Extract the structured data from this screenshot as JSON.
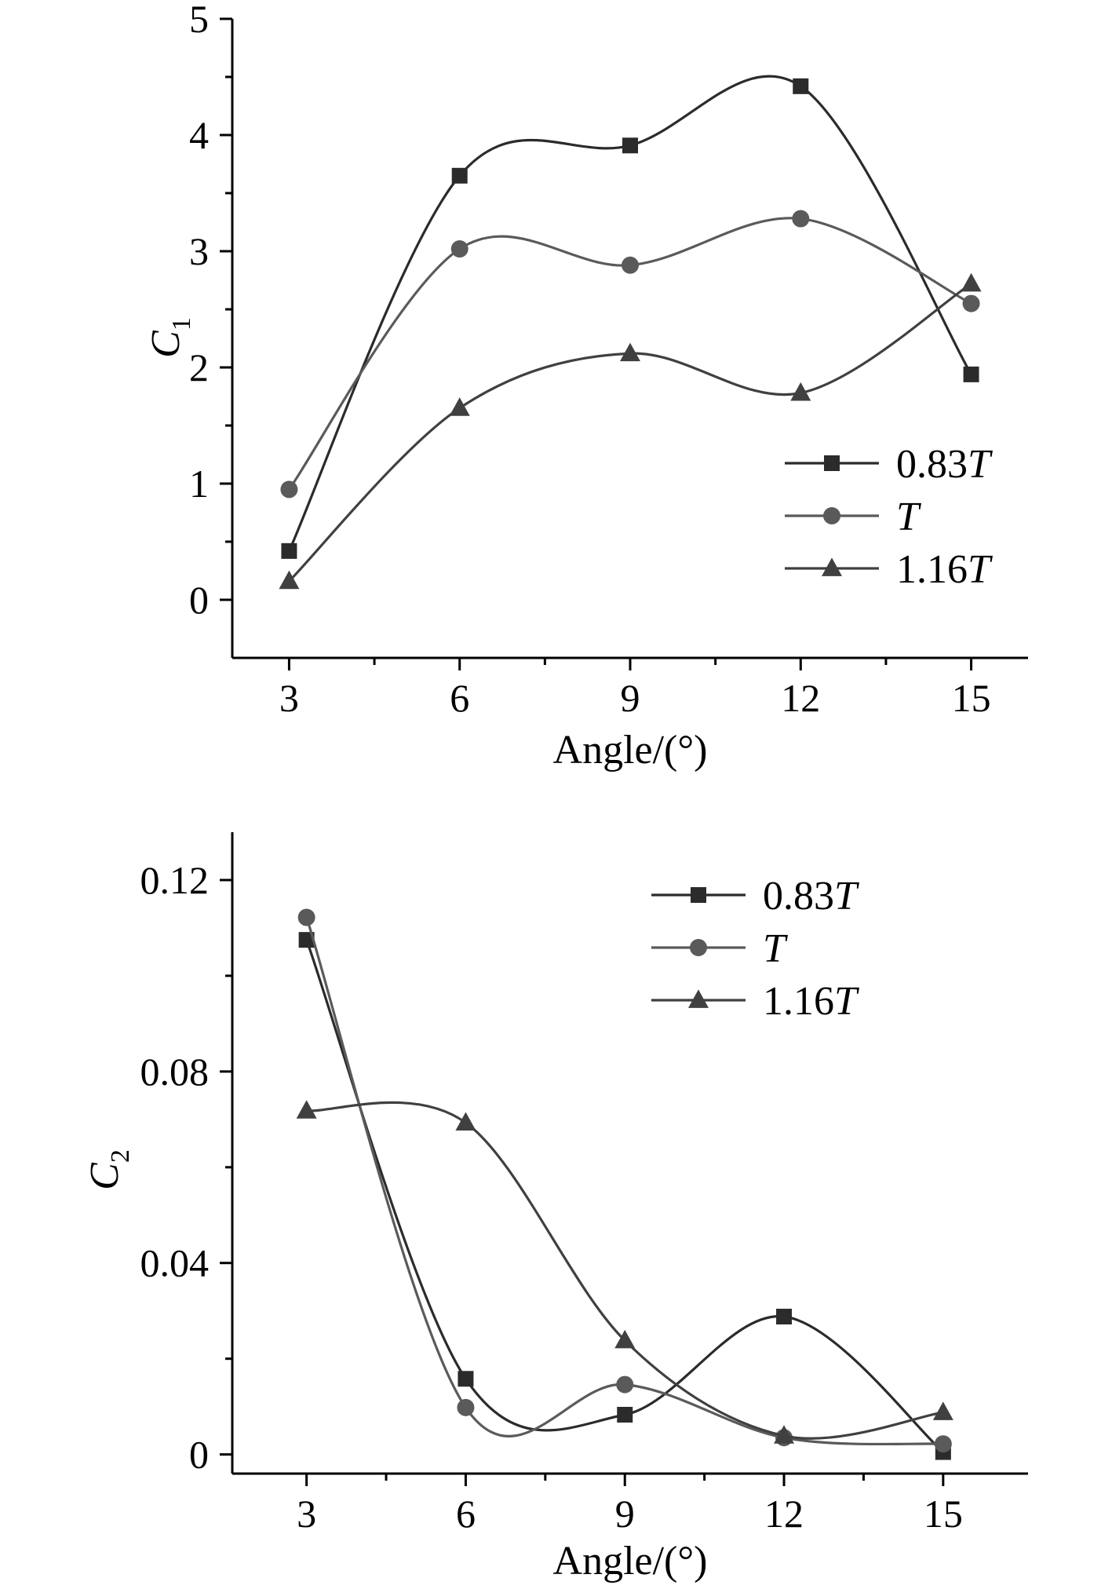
{
  "chart_data": [
    {
      "type": "line",
      "x": [
        3,
        6,
        9,
        12,
        15
      ],
      "xlabel": "Angle/(°)",
      "ylabel": {
        "main": "C",
        "sub": "1"
      },
      "xlim": [
        2,
        16
      ],
      "ylim": [
        -0.5,
        5
      ],
      "xticks": [
        3,
        6,
        9,
        12,
        15
      ],
      "xtick_labels": [
        "3",
        "6",
        "9",
        "12",
        "15"
      ],
      "yticks": [
        0,
        1,
        2,
        3,
        4,
        5
      ],
      "ytick_labels": [
        "0",
        "1",
        "2",
        "3",
        "4",
        "5"
      ],
      "grid": false,
      "legend_position": "lower-right",
      "series": [
        {
          "name": "0.83T",
          "name_parts": [
            "0.83",
            "T"
          ],
          "marker": "square",
          "color": "#2b2b2b",
          "values": [
            0.42,
            3.65,
            3.91,
            4.42,
            1.94
          ]
        },
        {
          "name": "T",
          "name_parts": [
            "",
            "T"
          ],
          "marker": "circle",
          "color": "#5a5a5a",
          "values": [
            0.95,
            3.02,
            2.88,
            3.28,
            2.55
          ]
        },
        {
          "name": "1.16T",
          "name_parts": [
            "1.16",
            "T"
          ],
          "marker": "triangle",
          "color": "#404040",
          "values": [
            0.16,
            1.65,
            2.12,
            1.78,
            2.72
          ]
        }
      ]
    },
    {
      "type": "line",
      "x": [
        3,
        6,
        9,
        12,
        15
      ],
      "xlabel": "Angle/(°)",
      "ylabel": {
        "main": "C",
        "sub": "2"
      },
      "xlim": [
        1.6,
        16.6
      ],
      "ylim": [
        -0.004,
        0.13
      ],
      "xticks": [
        3,
        6,
        9,
        12,
        15
      ],
      "xtick_labels": [
        "3",
        "6",
        "9",
        "12",
        "15"
      ],
      "yticks": [
        0,
        0.04,
        0.08,
        0.12
      ],
      "ytick_labels": [
        "0",
        "0.04",
        "0.08",
        "0.12"
      ],
      "grid": false,
      "legend_position": "top-right",
      "series": [
        {
          "name": "0.83T",
          "name_parts": [
            "0.83",
            "T"
          ],
          "marker": "square",
          "color": "#2b2b2b",
          "values": [
            0.1075,
            0.0158,
            0.0083,
            0.0288,
            0.0005
          ]
        },
        {
          "name": "T",
          "name_parts": [
            "",
            "T"
          ],
          "marker": "circle",
          "color": "#5a5a5a",
          "values": [
            0.1122,
            0.0098,
            0.0146,
            0.0035,
            0.0022
          ]
        },
        {
          "name": "1.16T",
          "name_parts": [
            "1.16",
            "T"
          ],
          "marker": "triangle",
          "color": "#404040",
          "values": [
            0.0718,
            0.0693,
            0.0238,
            0.0039,
            0.0088
          ]
        }
      ]
    }
  ]
}
